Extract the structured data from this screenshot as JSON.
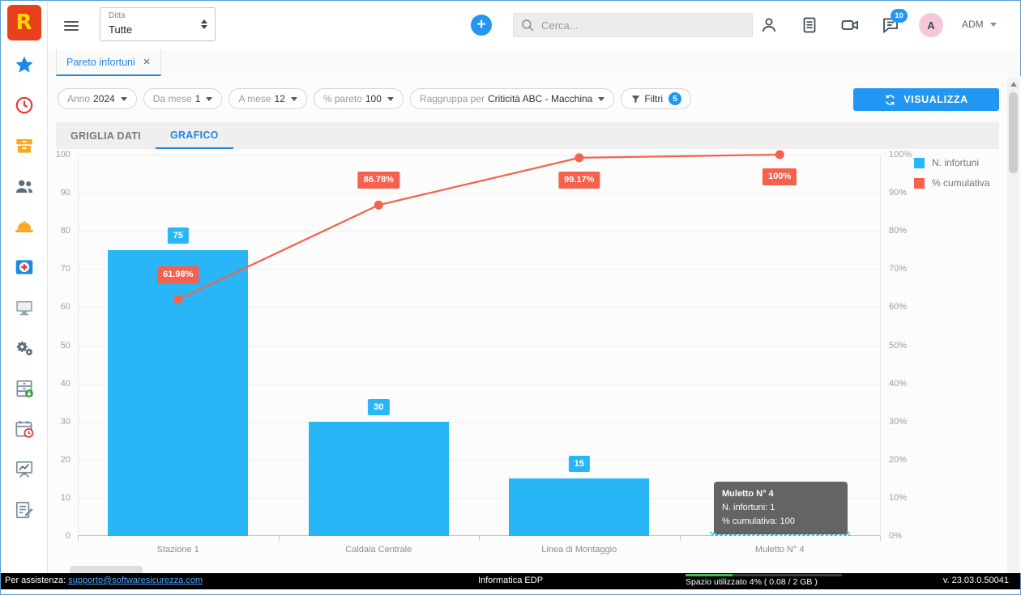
{
  "topbar": {
    "company_label": "Ditta",
    "company_value": "Tutte",
    "add_button": "+",
    "search_placeholder": "Cerca...",
    "chat_badge": "10",
    "avatar_initial": "A",
    "user_menu": "ADM"
  },
  "logo": {
    "text": "R",
    "bg": "#e8401c",
    "fg": "#ffd500"
  },
  "sidebar": {
    "items": [
      {
        "icon": "star-icon"
      },
      {
        "icon": "clock-icon"
      },
      {
        "icon": "archive-icon"
      },
      {
        "icon": "people-icon"
      },
      {
        "icon": "helmet-icon"
      },
      {
        "icon": "first-aid-icon"
      },
      {
        "icon": "monitor-icon"
      },
      {
        "icon": "gears-icon"
      },
      {
        "icon": "cabinet-check-icon"
      },
      {
        "icon": "calendar-clock-icon"
      },
      {
        "icon": "chart-board-icon"
      },
      {
        "icon": "edit-icon"
      }
    ]
  },
  "tab": {
    "title": "Pareto infortuni",
    "close_glyph": "×"
  },
  "filters": {
    "pills": [
      {
        "label": "Anno",
        "value": "2024"
      },
      {
        "label": "Da mese",
        "value": "1"
      },
      {
        "label": "A mese",
        "value": "12"
      },
      {
        "label": "% pareto",
        "value": "100"
      },
      {
        "label": "Raggruppa per",
        "value": "Criticità ABC - Macchina"
      }
    ],
    "filtri_label": "Filtri",
    "filtri_badge": "5",
    "visualizza": "VISUALIZZA"
  },
  "view_tabs": [
    {
      "label": "GRIGLIA DATI",
      "active": false
    },
    {
      "label": "GRAFICO",
      "active": true
    }
  ],
  "chart_data": {
    "type": "pareto (bar + line)",
    "categories": [
      "Stazione 1",
      "Caldaia Centrale",
      "Linea di Montaggio",
      "Muletto N° 4"
    ],
    "series": [
      {
        "name": "N. infortuni",
        "type": "bar",
        "color": "#29b6f6",
        "values": [
          75,
          30,
          15,
          1
        ]
      },
      {
        "name": "% cumulativa",
        "type": "line",
        "color": "#f4614d",
        "values": [
          61.98,
          86.78,
          99.17,
          100
        ]
      }
    ],
    "bar_labels": [
      "75",
      "30",
      "15",
      ""
    ],
    "line_labels": [
      "61.98%",
      "86.78%",
      "99.17%",
      "100%"
    ],
    "left_axis": {
      "min": 0,
      "max": 100
    },
    "right_axis": {
      "min": "0%",
      "max": "100%"
    },
    "left_axis_ticks": [
      "0",
      "10",
      "20",
      "30",
      "40",
      "50",
      "60",
      "70",
      "80",
      "90",
      "100"
    ],
    "right_axis_ticks": [
      "0%",
      "10%",
      "20%",
      "30%",
      "40%",
      "50%",
      "60%",
      "70%",
      "80%",
      "90%",
      "100%"
    ],
    "grid": true,
    "legend_position": "right",
    "highlighted_category": "Muletto N° 4",
    "tooltip": {
      "title": "Muletto N° 4",
      "line1": "N. infortuni: 1",
      "line2": "% cumulativa: 100"
    }
  },
  "footer": {
    "assist_label": "Per assistenza:",
    "assist_link": "supporto@softwaresicurezza.com",
    "center": "Informatica EDP",
    "storage": "Spazio utilizzato 4% ( 0.08 / 2 GB )",
    "version": "v. 23.03.0.50041"
  }
}
